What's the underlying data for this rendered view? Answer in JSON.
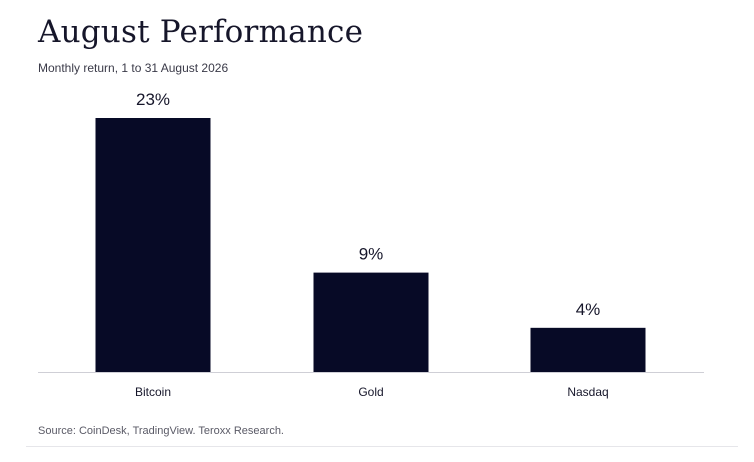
{
  "header": {
    "title": "August Performance",
    "subtitle": "Monthly return, 1 to 31 August 2026"
  },
  "footer": {
    "source": "Source: CoinDesk, TradingView. Teroxx Research."
  },
  "colors": {
    "bar": "#070a26",
    "axis": "#cfcfd6",
    "text": "#16162a"
  },
  "chart_data": {
    "type": "bar",
    "title": "August Performance",
    "subtitle": "Monthly return, 1 to 31 August 2026",
    "categories": [
      "Bitcoin",
      "Gold",
      "Nasdaq"
    ],
    "values": [
      23,
      9,
      4
    ],
    "data_labels": [
      "23%",
      "9%",
      "4%"
    ],
    "unit": "%",
    "xlabel": "",
    "ylabel": "",
    "ylim": [
      0,
      23
    ],
    "grid": false,
    "legend": "none"
  }
}
